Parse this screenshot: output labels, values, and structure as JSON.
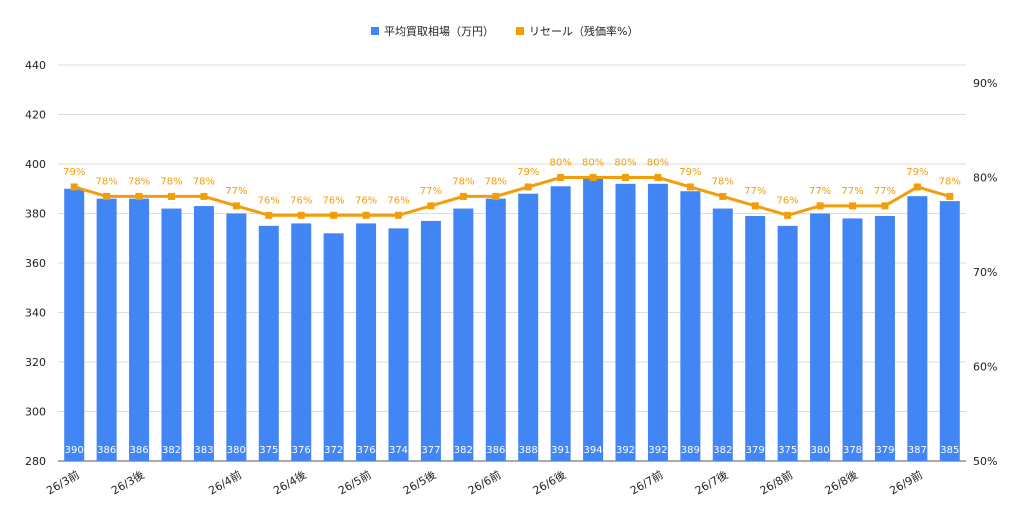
{
  "chart_data": {
    "type": "bar",
    "categories": [
      "26/3前",
      "",
      "26/3後",
      "",
      "",
      "26/4前",
      "",
      "26/4後",
      "",
      "26/5前",
      "",
      "26/5後",
      "",
      "26/6前",
      "",
      "26/6後",
      "",
      "",
      "26/7前",
      "",
      "26/7後",
      "",
      "26/8前",
      "",
      "26/8後",
      "",
      "26/9前",
      ""
    ],
    "series": [
      {
        "name": "平均買取相場（万円）",
        "type": "bar",
        "axis": "left",
        "color": "#4285f4",
        "values": [
          390,
          386,
          386,
          382,
          383,
          380,
          375,
          376,
          372,
          376,
          374,
          377,
          382,
          386,
          388,
          391,
          394,
          392,
          392,
          389,
          382,
          379,
          375,
          380,
          378,
          379,
          387,
          385
        ]
      },
      {
        "name": "リセール（残価率%）",
        "type": "line",
        "axis": "right",
        "color": "#f29d0a",
        "values": [
          79,
          78,
          78,
          78,
          78,
          77,
          76,
          76,
          76,
          76,
          76,
          77,
          78,
          78,
          79,
          80,
          80,
          80,
          80,
          79,
          78,
          77,
          76,
          77,
          77,
          77,
          79,
          78
        ]
      }
    ],
    "bar_labels": [
      "390",
      "386",
      "386",
      "382",
      "383",
      "380",
      "375",
      "376",
      "372",
      "376",
      "374",
      "377",
      "382",
      "386",
      "388",
      "391",
      "394",
      "392",
      "392",
      "389",
      "382",
      "379",
      "375",
      "380",
      "378",
      "379",
      "387",
      "385"
    ],
    "line_labels": [
      "79%",
      "78%",
      "78%",
      "78%",
      "78%",
      "77%",
      "76%",
      "76%",
      "76%",
      "76%",
      "76%",
      "77%",
      "78%",
      "78%",
      "79%",
      "80%",
      "80%",
      "80%",
      "80%",
      "79%",
      "78%",
      "77%",
      "76%",
      "77%",
      "77%",
      "77%",
      "79%",
      "78%"
    ],
    "left_axis": {
      "ylim": [
        280,
        440
      ],
      "ticks": [
        "280",
        "300",
        "320",
        "340",
        "360",
        "380",
        "400",
        "420",
        "440"
      ]
    },
    "right_axis": {
      "ylim": [
        50,
        90
      ],
      "ticks": [
        "50%",
        "60%",
        "70%",
        "80%",
        "90%"
      ]
    },
    "legend_position": "top-center",
    "grid": true
  }
}
